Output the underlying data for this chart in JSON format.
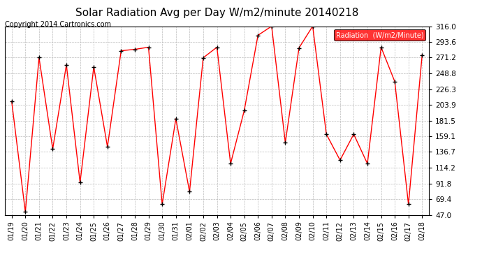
{
  "title": "Solar Radiation Avg per Day W/m2/minute 20140218",
  "copyright": "Copyright 2014 Cartronics.com",
  "legend_label": "Radiation  (W/m2/Minute)",
  "dates": [
    "01/19",
    "01/20",
    "01/21",
    "01/22",
    "01/23",
    "01/24",
    "01/25",
    "01/26",
    "01/27",
    "01/28",
    "01/29",
    "01/30",
    "01/31",
    "02/01",
    "02/02",
    "02/03",
    "02/04",
    "02/05",
    "02/06",
    "02/07",
    "02/08",
    "02/09",
    "02/10",
    "02/11",
    "02/12",
    "02/13",
    "02/14",
    "02/15",
    "02/16",
    "02/17",
    "02/18"
  ],
  "values": [
    209.0,
    51.0,
    271.2,
    141.0,
    261.0,
    93.0,
    258.0,
    144.0,
    281.0,
    283.0,
    286.0,
    62.0,
    184.0,
    80.0,
    271.0,
    286.0,
    120.0,
    196.0,
    303.0,
    316.0,
    150.0,
    285.0,
    316.0,
    162.0,
    125.0,
    162.0,
    120.0,
    286.0,
    237.0,
    62.0,
    275.0
  ],
  "line_color": "red",
  "marker_color": "black",
  "marker_style": "+",
  "bg_color": "white",
  "grid_color": "#bbbbbb",
  "ylim": [
    47.0,
    316.0
  ],
  "yticks": [
    47.0,
    69.4,
    91.8,
    114.2,
    136.7,
    159.1,
    181.5,
    203.9,
    226.3,
    248.8,
    271.2,
    293.6,
    316.0
  ],
  "title_fontsize": 11,
  "copyright_fontsize": 7,
  "legend_bg": "red",
  "legend_text_color": "white",
  "tick_fontsize": 7.5,
  "xtick_fontsize": 7
}
